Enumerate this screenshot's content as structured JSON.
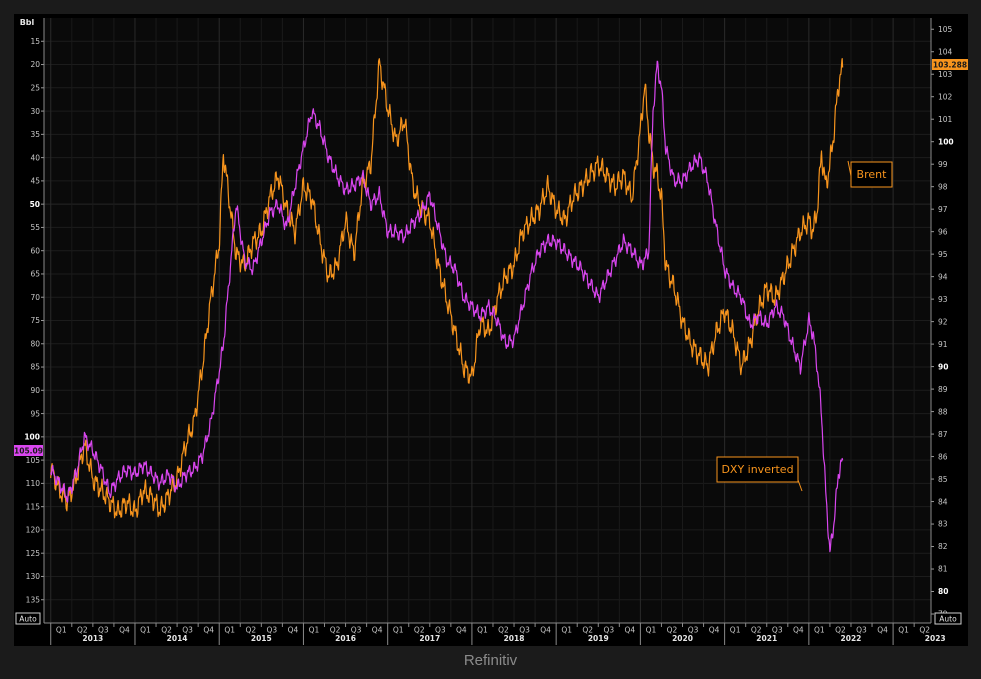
{
  "footer": "Refinitiv",
  "chart_data": {
    "type": "line",
    "left_axis": {
      "unit_label": "Bbl",
      "inverted": true,
      "range": [
        10,
        140
      ],
      "ticks": [
        15,
        20,
        25,
        30,
        35,
        40,
        45,
        50,
        55,
        60,
        65,
        70,
        75,
        80,
        85,
        90,
        95,
        100,
        105,
        110,
        115,
        120,
        125,
        130,
        135
      ],
      "bold_ticks": [
        50,
        100
      ]
    },
    "right_axis": {
      "range": [
        78.6,
        105.5
      ],
      "ticks": [
        79,
        80,
        81,
        82,
        83,
        84,
        85,
        86,
        87,
        88,
        89,
        90,
        91,
        92,
        93,
        94,
        95,
        96,
        97,
        98,
        99,
        100,
        101,
        102,
        103,
        104,
        105
      ],
      "bold_ticks": [
        80,
        90,
        100
      ]
    },
    "x_axis": {
      "quarters": [
        "Q1",
        "Q2",
        "Q3",
        "Q4",
        "Q1",
        "Q2",
        "Q3",
        "Q4",
        "Q1",
        "Q2",
        "Q3",
        "Q4",
        "Q1",
        "Q2",
        "Q3",
        "Q4",
        "Q1",
        "Q2",
        "Q3",
        "Q4",
        "Q1",
        "Q2",
        "Q3",
        "Q4",
        "Q1",
        "Q2",
        "Q3",
        "Q4",
        "Q1",
        "Q2",
        "Q3",
        "Q4",
        "Q1",
        "Q2",
        "Q3",
        "Q4",
        "Q1",
        "Q2",
        "Q3",
        "Q4",
        "Q1",
        "Q2"
      ],
      "years": [
        "2013",
        "2014",
        "2015",
        "2016",
        "2017",
        "2018",
        "2019",
        "2020",
        "2021",
        "2022",
        "2023"
      ]
    },
    "auto_left": "Auto",
    "auto_right": "Auto",
    "last_value_left": "105.09",
    "last_value_right": "103.288",
    "grid": true,
    "series": [
      {
        "name": "Brent",
        "color": "#f7941d",
        "axis": "right",
        "x": [
          2013.0,
          2013.1,
          2013.2,
          2013.3,
          2013.4,
          2013.5,
          2013.6,
          2013.7,
          2013.8,
          2013.9,
          2014.0,
          2014.1,
          2014.2,
          2014.3,
          2014.4,
          2014.5,
          2014.6,
          2014.7,
          2014.8,
          2014.9,
          2015.0,
          2015.05,
          2015.1,
          2015.2,
          2015.3,
          2015.4,
          2015.5,
          2015.6,
          2015.7,
          2015.8,
          2015.9,
          2016.0,
          2016.1,
          2016.2,
          2016.3,
          2016.4,
          2016.5,
          2016.6,
          2016.7,
          2016.8,
          2016.9,
          2017.0,
          2017.1,
          2017.2,
          2017.3,
          2017.4,
          2017.5,
          2017.6,
          2017.7,
          2017.8,
          2017.9,
          2018.0,
          2018.1,
          2018.2,
          2018.3,
          2018.4,
          2018.5,
          2018.6,
          2018.7,
          2018.8,
          2018.9,
          2019.0,
          2019.1,
          2019.2,
          2019.3,
          2019.4,
          2019.5,
          2019.6,
          2019.7,
          2019.8,
          2019.9,
          2020.0,
          2020.05,
          2020.1,
          2020.15,
          2020.2,
          2020.25,
          2020.3,
          2020.4,
          2020.5,
          2020.6,
          2020.7,
          2020.8,
          2020.9,
          2021.0,
          2021.1,
          2021.2,
          2021.3,
          2021.4,
          2021.5,
          2021.6,
          2021.7,
          2021.8,
          2021.9,
          2022.0,
          2022.05,
          2022.1,
          2022.15,
          2022.2,
          2022.25,
          2022.3,
          2022.35,
          2022.4
        ],
        "values": [
          85.5,
          84.5,
          84.0,
          85.0,
          86.5,
          85.0,
          84.5,
          84.0,
          83.5,
          84.0,
          83.5,
          84.5,
          84.2,
          83.6,
          84.3,
          85.0,
          86.5,
          87.5,
          90.0,
          93.0,
          95.5,
          99.5,
          98.0,
          95.0,
          94.5,
          95.5,
          96.0,
          97.5,
          98.5,
          97.0,
          96.0,
          98.0,
          97.5,
          95.5,
          94.0,
          94.5,
          96.5,
          95.0,
          98.0,
          99.0,
          103.5,
          101.5,
          100.0,
          101.0,
          98.0,
          97.0,
          96.5,
          94.5,
          93.0,
          91.5,
          90.0,
          89.5,
          92.0,
          91.5,
          93.0,
          94.0,
          94.5,
          96.0,
          96.5,
          97.0,
          98.0,
          97.0,
          96.5,
          97.5,
          98.0,
          98.5,
          99.0,
          98.5,
          98.0,
          98.5,
          97.5,
          100.5,
          102.5,
          100.5,
          99.0,
          98.5,
          97.5,
          94.5,
          93.5,
          92.0,
          91.0,
          90.5,
          90.0,
          91.5,
          92.5,
          91.5,
          90.0,
          91.0,
          92.5,
          93.5,
          93.0,
          94.0,
          95.0,
          96.0,
          96.5,
          96.0,
          97.0,
          99.5,
          98.0,
          99.0,
          100.5,
          102.5,
          103.3
        ]
      },
      {
        "name": "DXY inverted",
        "color": "#d946ef",
        "axis": "left",
        "x": [
          2013.0,
          2013.1,
          2013.2,
          2013.3,
          2013.4,
          2013.5,
          2013.6,
          2013.7,
          2013.8,
          2013.9,
          2014.0,
          2014.1,
          2014.2,
          2014.3,
          2014.4,
          2014.5,
          2014.6,
          2014.7,
          2014.8,
          2014.9,
          2015.0,
          2015.05,
          2015.1,
          2015.2,
          2015.3,
          2015.4,
          2015.5,
          2015.6,
          2015.7,
          2015.8,
          2015.9,
          2016.0,
          2016.1,
          2016.2,
          2016.3,
          2016.4,
          2016.5,
          2016.6,
          2016.7,
          2016.8,
          2016.9,
          2017.0,
          2017.1,
          2017.2,
          2017.3,
          2017.4,
          2017.5,
          2017.6,
          2017.7,
          2017.8,
          2017.9,
          2018.0,
          2018.1,
          2018.2,
          2018.3,
          2018.4,
          2018.5,
          2018.6,
          2018.7,
          2018.8,
          2018.9,
          2019.0,
          2019.1,
          2019.2,
          2019.3,
          2019.4,
          2019.5,
          2019.6,
          2019.7,
          2019.8,
          2019.9,
          2020.0,
          2020.05,
          2020.1,
          2020.15,
          2020.2,
          2020.25,
          2020.3,
          2020.4,
          2020.5,
          2020.6,
          2020.7,
          2020.8,
          2020.9,
          2021.0,
          2021.1,
          2021.2,
          2021.3,
          2021.4,
          2021.5,
          2021.6,
          2021.7,
          2021.8,
          2021.9,
          2022.0,
          2022.05,
          2022.1,
          2022.15,
          2022.2,
          2022.25,
          2022.3,
          2022.35,
          2022.4
        ],
        "values": [
          107,
          110,
          113,
          108,
          100,
          103,
          107,
          112,
          109,
          107,
          108,
          106,
          108,
          110,
          108,
          111,
          108,
          107,
          104,
          97,
          86,
          80,
          70,
          50,
          62,
          64,
          58,
          52,
          50,
          55,
          46,
          38,
          30,
          34,
          40,
          44,
          47,
          46,
          44,
          50,
          48,
          56,
          56,
          57,
          54,
          52,
          48,
          55,
          62,
          64,
          70,
          72,
          74,
          72,
          75,
          80,
          79,
          72,
          65,
          60,
          58,
          58,
          60,
          62,
          64,
          67,
          70,
          66,
          62,
          58,
          60,
          63,
          62,
          60,
          30,
          20,
          25,
          38,
          45,
          45,
          42,
          40,
          45,
          55,
          64,
          68,
          70,
          76,
          74,
          76,
          72,
          74,
          80,
          85,
          75,
          78,
          85,
          95,
          112,
          125,
          118,
          108,
          105
        ]
      }
    ]
  }
}
